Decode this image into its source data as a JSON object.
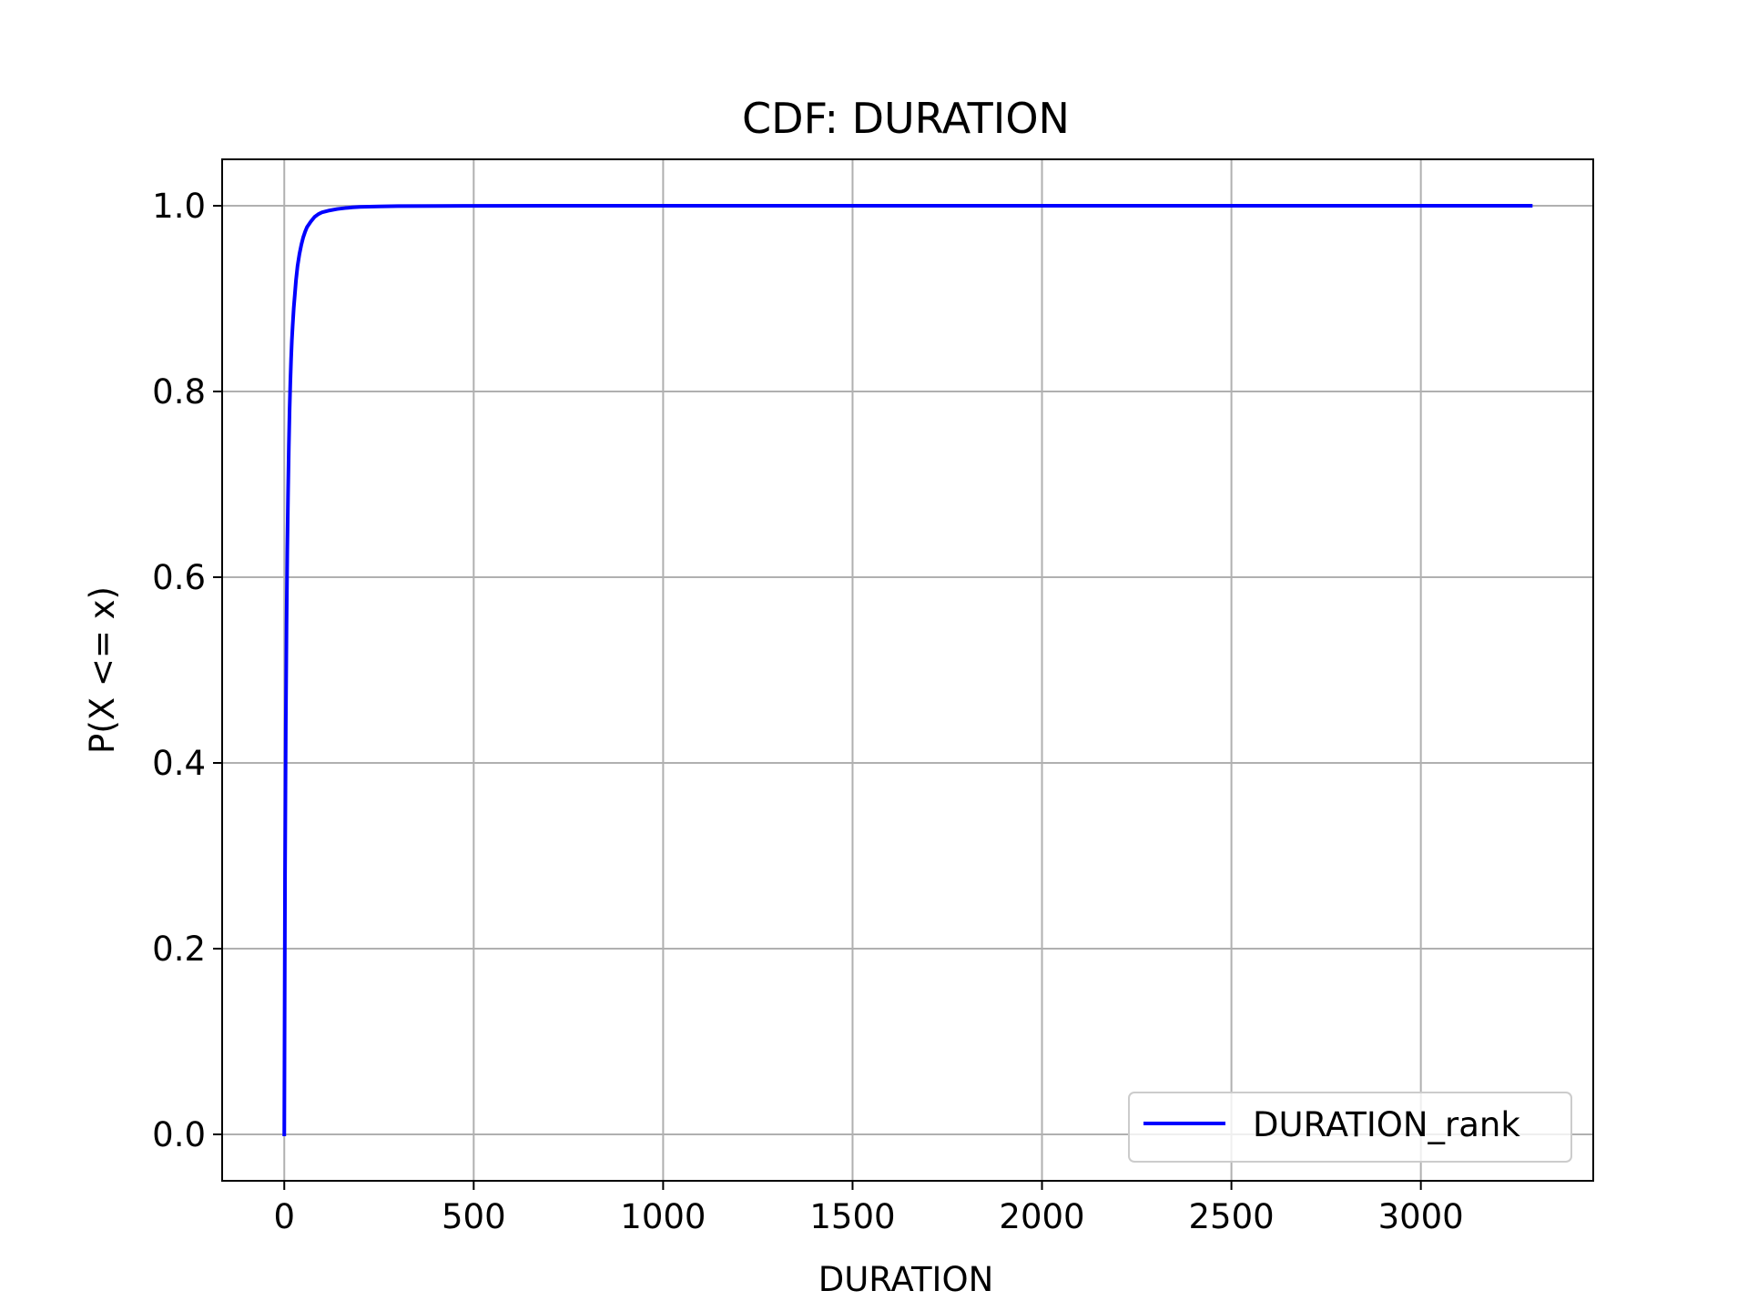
{
  "chart_data": {
    "type": "line",
    "title": "CDF: DURATION",
    "xlabel": "DURATION",
    "ylabel": "P(X <= x)",
    "xlim": [
      -164,
      3455
    ],
    "ylim": [
      -0.05,
      1.05
    ],
    "xticks": [
      0,
      500,
      1000,
      1500,
      2000,
      2500,
      3000
    ],
    "yticks": [
      0.0,
      0.2,
      0.4,
      0.6,
      0.8,
      1.0
    ],
    "xtick_labels": [
      "0",
      "500",
      "1000",
      "1500",
      "2000",
      "2500",
      "3000"
    ],
    "ytick_labels": [
      "0.0",
      "0.2",
      "0.4",
      "0.6",
      "0.8",
      "1.0"
    ],
    "grid": true,
    "legend_position": "lower-right",
    "series": [
      {
        "name": "DURATION_rank",
        "color": "#0000ff",
        "x": [
          0,
          2,
          4,
          6,
          8,
          10,
          12,
          14,
          16,
          18,
          20,
          22,
          25,
          28,
          31,
          35,
          40,
          45,
          50,
          55,
          60,
          70,
          80,
          90,
          100,
          120,
          140,
          160,
          180,
          200,
          250,
          300,
          400,
          500,
          700,
          1000,
          1500,
          2000,
          2500,
          3000,
          3290
        ],
        "y": [
          0.0,
          0.28,
          0.44,
          0.55,
          0.63,
          0.69,
          0.74,
          0.78,
          0.81,
          0.835,
          0.855,
          0.87,
          0.89,
          0.905,
          0.92,
          0.935,
          0.948,
          0.958,
          0.966,
          0.972,
          0.977,
          0.983,
          0.988,
          0.991,
          0.993,
          0.995,
          0.9965,
          0.9975,
          0.9983,
          0.9988,
          0.9993,
          0.9996,
          0.9998,
          0.9999,
          1.0,
          1.0,
          1.0,
          1.0,
          1.0,
          1.0,
          1.0
        ]
      }
    ]
  }
}
